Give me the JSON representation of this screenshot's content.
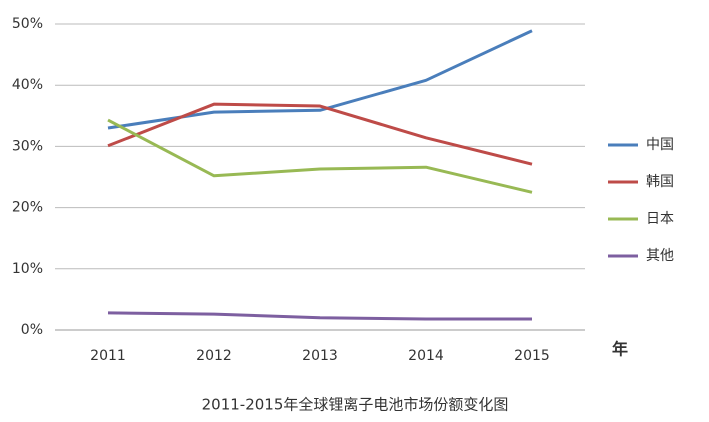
{
  "chart_data": {
    "type": "line",
    "title": "2011-2015年全球锂离子电池市场份额变化图",
    "x_label": "年",
    "categories": [
      "2011",
      "2012",
      "2013",
      "2014",
      "2015"
    ],
    "series": [
      {
        "name": "中国",
        "color": "#4a7ebb",
        "values": [
          33.0,
          35.6,
          35.9,
          40.8,
          48.9
        ]
      },
      {
        "name": "韩国",
        "color": "#be4b48",
        "values": [
          30.1,
          36.9,
          36.6,
          31.4,
          27.1
        ]
      },
      {
        "name": "日本",
        "color": "#98b954",
        "values": [
          34.3,
          25.2,
          26.3,
          26.6,
          22.5
        ]
      },
      {
        "name": "其他",
        "color": "#7d5fa0",
        "values": [
          2.8,
          2.6,
          2.0,
          1.8,
          1.8
        ]
      }
    ],
    "ylim": [
      0,
      50
    ],
    "yticks": [
      {
        "value": 0,
        "label": "0%"
      },
      {
        "value": 10,
        "label": "10%"
      },
      {
        "value": 20,
        "label": "20%"
      },
      {
        "value": 30,
        "label": "30%"
      },
      {
        "value": 40,
        "label": "40%"
      },
      {
        "value": 50,
        "label": "50%"
      }
    ],
    "grid": true,
    "legend": "right"
  }
}
